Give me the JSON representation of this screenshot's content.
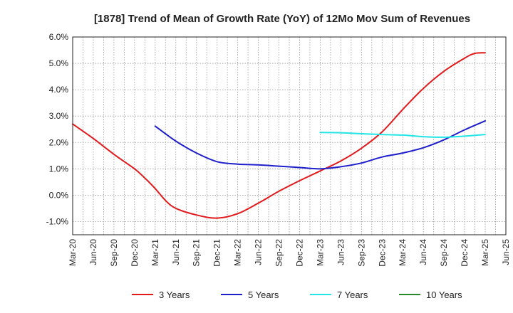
{
  "chart_data": {
    "type": "line",
    "title": "[1878]  Trend of Mean of Growth Rate (YoY) of 12Mo Mov Sum of Revenues",
    "xlabel": "",
    "ylabel": "",
    "ylim": [
      -1.5,
      6.0
    ],
    "y_ticks": [
      -1.0,
      0.0,
      1.0,
      2.0,
      3.0,
      4.0,
      5.0,
      6.0
    ],
    "y_tick_labels": [
      "-1.0%",
      "0.0%",
      "1.0%",
      "2.0%",
      "3.0%",
      "4.0%",
      "5.0%",
      "6.0%"
    ],
    "x_tick_labels": [
      "Mar-20",
      "Jun-20",
      "Sep-20",
      "Dec-20",
      "Mar-21",
      "Jun-21",
      "Sep-21",
      "Dec-21",
      "Mar-22",
      "Jun-22",
      "Sep-22",
      "Dec-22",
      "Mar-23",
      "Jun-23",
      "Sep-23",
      "Dec-23",
      "Mar-24",
      "Jun-24",
      "Sep-24",
      "Dec-24",
      "Mar-25",
      "Jun-25"
    ],
    "grid": true,
    "legend_position": "bottom",
    "series": [
      {
        "name": "3 Years",
        "color": "#e31a1c",
        "points": [
          [
            0,
            2.7
          ],
          [
            1,
            2.15
          ],
          [
            2,
            1.55
          ],
          [
            3,
            1.0
          ],
          [
            3.5,
            0.65
          ],
          [
            4,
            0.25
          ],
          [
            4.5,
            -0.2
          ],
          [
            5,
            -0.5
          ],
          [
            6,
            -0.75
          ],
          [
            7,
            -0.87
          ],
          [
            8,
            -0.7
          ],
          [
            9,
            -0.3
          ],
          [
            10,
            0.15
          ],
          [
            11,
            0.55
          ],
          [
            12,
            0.92
          ],
          [
            13,
            1.3
          ],
          [
            14,
            1.78
          ],
          [
            15,
            2.4
          ],
          [
            16,
            3.25
          ],
          [
            17,
            4.05
          ],
          [
            18,
            4.7
          ],
          [
            19,
            5.2
          ],
          [
            19.5,
            5.38
          ],
          [
            20,
            5.4
          ]
        ]
      },
      {
        "name": "5 Years",
        "color": "#1f1fcc",
        "points": [
          [
            4,
            2.62
          ],
          [
            5,
            2.05
          ],
          [
            6,
            1.6
          ],
          [
            7,
            1.27
          ],
          [
            8,
            1.18
          ],
          [
            9,
            1.15
          ],
          [
            10,
            1.1
          ],
          [
            11,
            1.05
          ],
          [
            12,
            1.0
          ],
          [
            13,
            1.08
          ],
          [
            14,
            1.22
          ],
          [
            15,
            1.45
          ],
          [
            16,
            1.6
          ],
          [
            17,
            1.8
          ],
          [
            18,
            2.1
          ],
          [
            19,
            2.48
          ],
          [
            20,
            2.82
          ]
        ]
      },
      {
        "name": "7 Years",
        "color": "#22e5e5",
        "points": [
          [
            12,
            2.38
          ],
          [
            13,
            2.37
          ],
          [
            14,
            2.33
          ],
          [
            15,
            2.3
          ],
          [
            16,
            2.28
          ],
          [
            17,
            2.22
          ],
          [
            18,
            2.2
          ],
          [
            19,
            2.24
          ],
          [
            20,
            2.3
          ]
        ]
      },
      {
        "name": "10 Years",
        "color": "#2a8a2a",
        "points": []
      }
    ]
  }
}
